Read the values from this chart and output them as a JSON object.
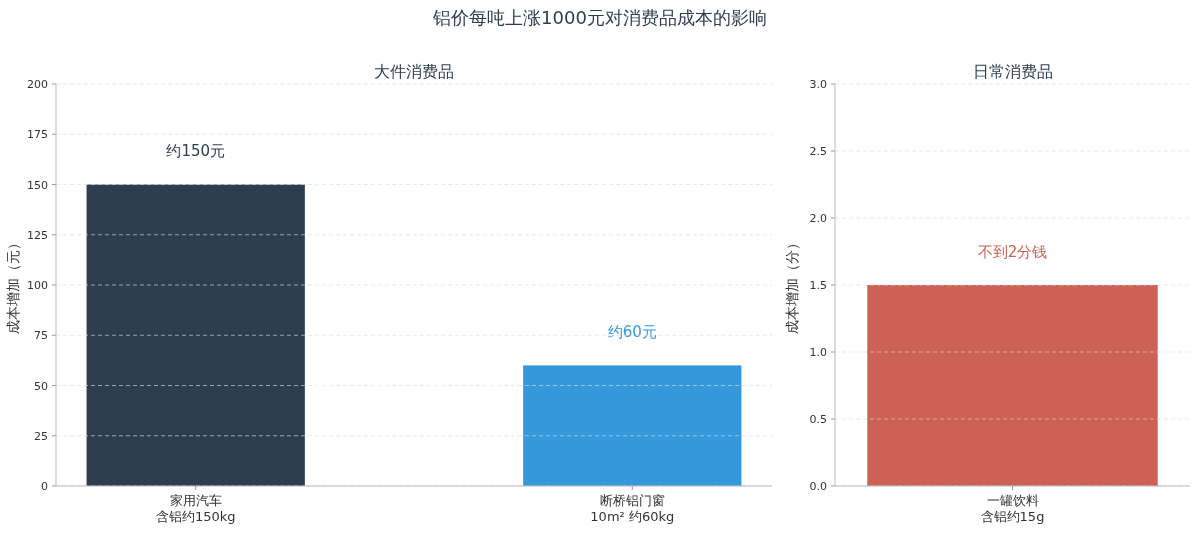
{
  "chart_data": [
    {
      "type": "bar",
      "title": "大件消费品",
      "ylabel": "成本增加（元）",
      "categories": [
        "家用汽车",
        "断桥铝门窗"
      ],
      "values": [
        150,
        60
      ],
      "colors": [
        "#2c3e50",
        "#3498db"
      ],
      "value_labels": [
        "约150元",
        "约60元"
      ],
      "ylim": [
        0,
        200
      ],
      "yticks": [
        0,
        25,
        50,
        75,
        100,
        125,
        150,
        175,
        200
      ],
      "grid": "y",
      "annotations": [
        "铝价每吨上涨1000元对消费品成本的影响",
        "含铝约150kg",
        "10m² 约60kg"
      ]
    },
    {
      "type": "bar",
      "title": "日常消费品",
      "ylabel": "成本增加（分）",
      "categories": [
        "一罐饮料"
      ],
      "values": [
        1.5
      ],
      "colors": [
        "#cd6155"
      ],
      "value_labels": [
        "不到2分钱"
      ],
      "ylim": [
        0,
        3
      ],
      "yticks": [
        {
          "value": 0,
          "label": "0.0"
        },
        {
          "value": 0.5,
          "label": "0.5"
        },
        {
          "value": 1,
          "label": "1.0"
        },
        {
          "value": 1.5,
          "label": "1.5"
        },
        {
          "value": 2,
          "label": "2.0"
        },
        {
          "value": 2.5,
          "label": "2.5"
        },
        {
          "value": 3,
          "label": "3.0"
        }
      ],
      "grid": "y",
      "annotations": [
        "含铝约15g"
      ]
    }
  ]
}
